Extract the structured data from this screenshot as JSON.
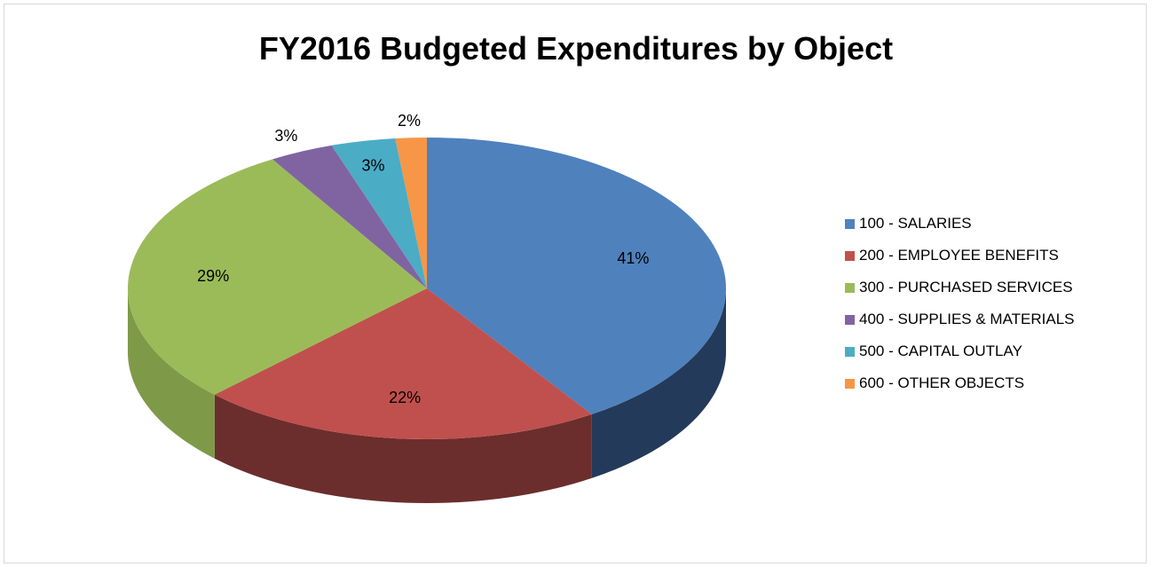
{
  "chart_data": {
    "type": "pie",
    "title": "FY2016 Budgeted Expenditures by Object",
    "slices": [
      {
        "name": "100 - SALARIES",
        "value": 41,
        "label": "41%",
        "color": "#4F81BD",
        "side": "#243A5A"
      },
      {
        "name": "200 - EMPLOYEE BENEFITS",
        "value": 22,
        "label": "22%",
        "color": "#C0504D",
        "side": "#6B2E2D"
      },
      {
        "name": "300 - PURCHASED SERVICES",
        "value": 29,
        "label": "29%",
        "color": "#9BBB59",
        "side": "#7E9A48"
      },
      {
        "name": "400 - SUPPLIES & MATERIALS",
        "value": 3.5,
        "label": "3%",
        "color": "#8064A2",
        "side": "#5A4573"
      },
      {
        "name": "500 - CAPITAL OUTLAY",
        "value": 3.5,
        "label": "3%",
        "color": "#4BACC6",
        "side": "#2F7A8E"
      },
      {
        "name": "600 - OTHER OBJECTS",
        "value": 1.7,
        "label": "2%",
        "color": "#F79646",
        "side": "#B66B2F"
      }
    ],
    "legend_position": "right"
  }
}
